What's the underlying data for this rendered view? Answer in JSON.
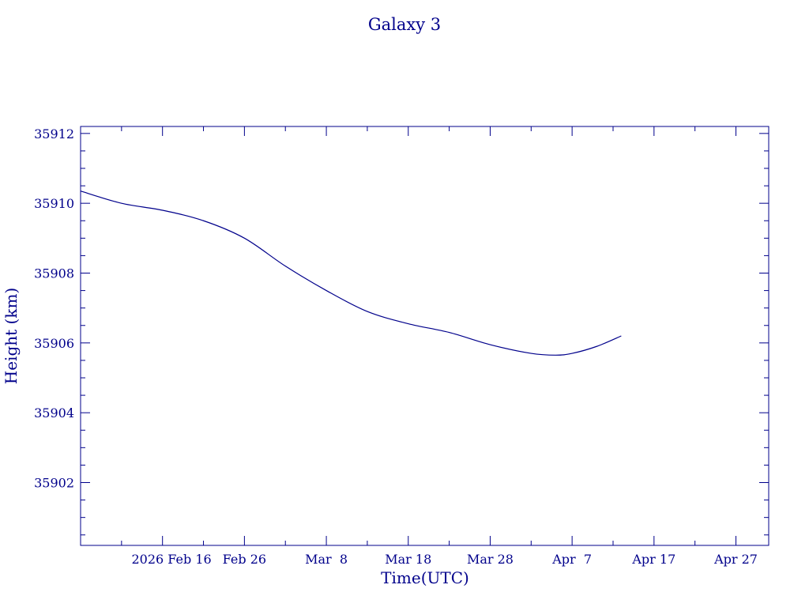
{
  "colors": {
    "ink": "#00008b",
    "background": "#ffffff"
  },
  "chart_data": {
    "type": "line",
    "title": "Galaxy 3",
    "xlabel": "Time(UTC)",
    "ylabel": "Height (km)",
    "grid": false,
    "xlim": [
      "2026-02-06",
      "2026-05-01"
    ],
    "ylim": [
      35900.2,
      35912.2
    ],
    "x_tick_values": [
      "2026-02-16",
      "2026-02-26",
      "2026-03-08",
      "2026-03-18",
      "2026-03-28",
      "2026-04-07",
      "2026-04-17",
      "2026-04-27"
    ],
    "x_tick_labels": [
      "2026 Feb 16",
      "Feb 26",
      "Mar  8",
      "Mar 18",
      "Mar 28",
      "Apr  7",
      "Apr 17",
      "Apr 27"
    ],
    "y_tick_values": [
      35902,
      35904,
      35906,
      35908,
      35910,
      35912
    ],
    "y_tick_labels": [
      "35902",
      "35904",
      "35906",
      "35908",
      "35910",
      "35912"
    ],
    "series": [
      {
        "x": [
          "2026-02-06",
          "2026-02-11",
          "2026-02-16",
          "2026-02-21",
          "2026-02-26",
          "2026-03-03",
          "2026-03-08",
          "2026-03-13",
          "2026-03-18",
          "2026-03-23",
          "2026-03-28",
          "2026-04-02",
          "2026-04-05",
          "2026-04-07",
          "2026-04-10",
          "2026-04-13"
        ],
        "y": [
          35910.35,
          35910.0,
          35909.8,
          35909.5,
          35909.0,
          35908.2,
          35907.5,
          35906.9,
          35906.55,
          35906.3,
          35905.95,
          35905.7,
          35905.65,
          35905.7,
          35905.9,
          35906.2
        ]
      }
    ]
  }
}
